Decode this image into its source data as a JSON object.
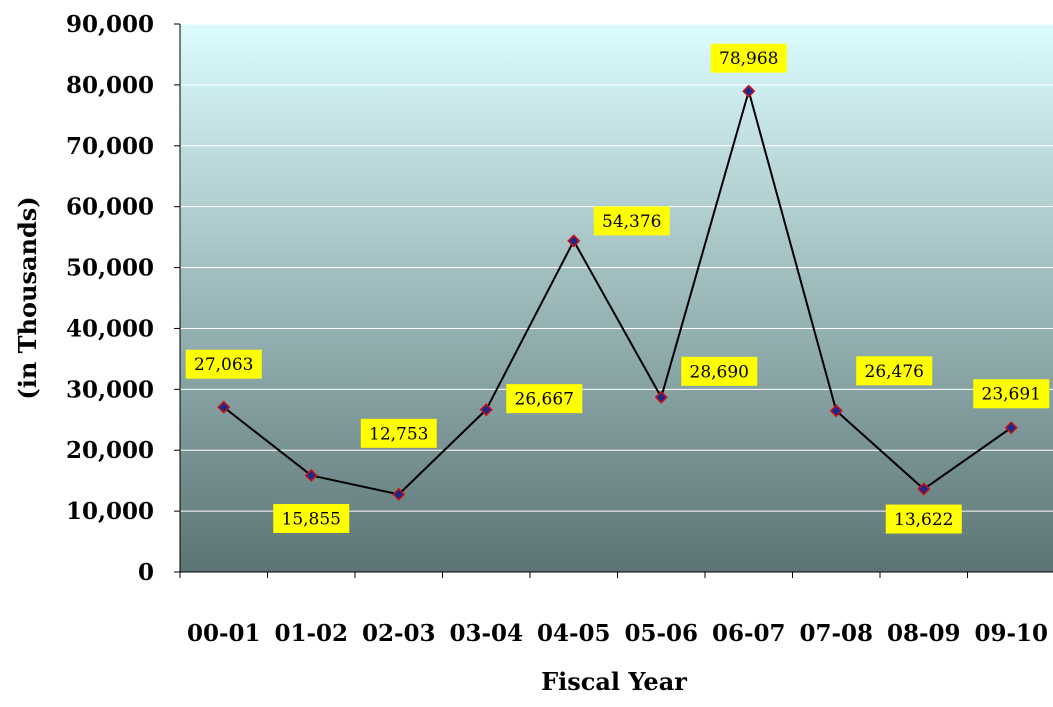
{
  "chart_data": {
    "type": "line",
    "title": "",
    "xlabel": "Fiscal Year",
    "ylabel": "(in Thousands)",
    "categories": [
      "00-01",
      "01-02",
      "02-03",
      "03-04",
      "04-05",
      "05-06",
      "06-07",
      "07-08",
      "08-09",
      "09-10"
    ],
    "values": [
      27063,
      15855,
      12753,
      26667,
      54376,
      28690,
      78968,
      26476,
      13622,
      23691
    ],
    "data_labels": [
      "27,063",
      "15,855",
      "12,753",
      "26,667",
      "54,376",
      "28,690",
      "78,968",
      "26,476",
      "13,622",
      "23,691"
    ],
    "ylim": [
      0,
      90000
    ],
    "yticks": [
      0,
      10000,
      20000,
      30000,
      40000,
      50000,
      60000,
      70000,
      80000,
      90000
    ],
    "ytick_labels": [
      "0",
      "10,000",
      "20,000",
      "30,000",
      "40,000",
      "50,000",
      "60,000",
      "70,000",
      "80,000",
      "90,000"
    ],
    "grid": true,
    "legend": false,
    "colors": {
      "plot_top": "#dcfcff",
      "plot_bottom": "#5c7474",
      "line": "#000000",
      "marker_fill": "#1a2a8c",
      "marker_edge": "#cc1111",
      "label_bg": "#ffff00",
      "grid": "#ffffff"
    }
  }
}
